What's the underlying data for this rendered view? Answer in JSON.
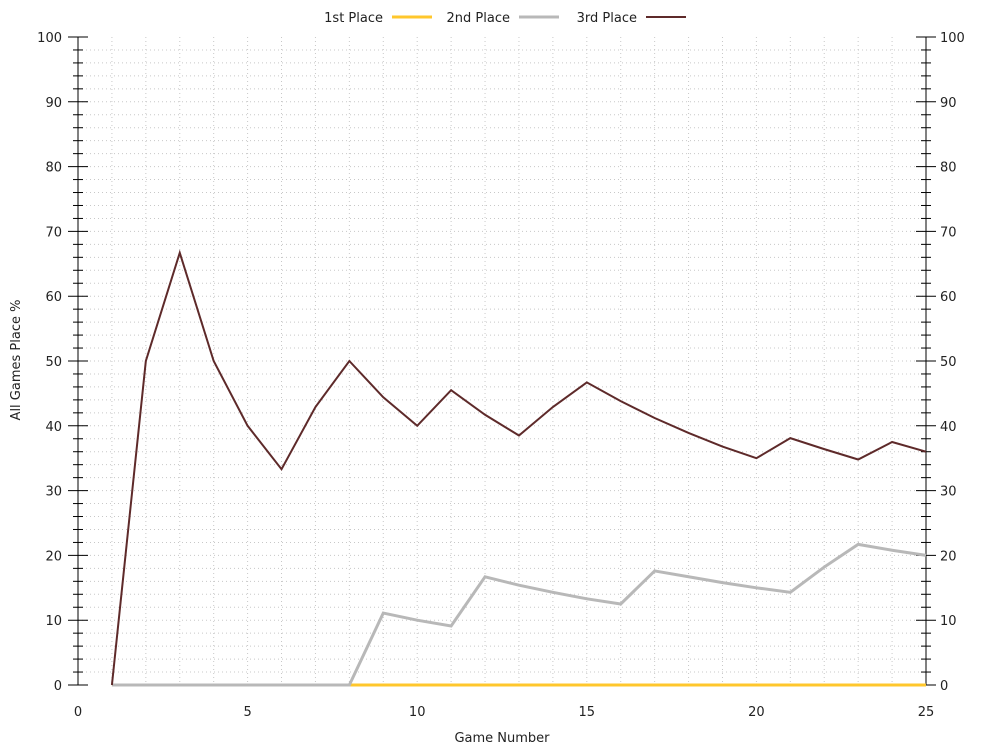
{
  "chart_data": {
    "type": "line",
    "xlabel": "Game Number",
    "ylabel": "All Games Place %",
    "xlim": [
      0,
      25
    ],
    "ylim": [
      0,
      100
    ],
    "x_ticks": [
      0,
      5,
      10,
      15,
      20,
      25
    ],
    "y_ticks": [
      0,
      10,
      20,
      30,
      40,
      50,
      60,
      70,
      80,
      90,
      100
    ],
    "x_tick_labels": [
      "0",
      "5",
      "10",
      "15",
      "20",
      "25"
    ],
    "y_tick_labels": [
      "0",
      "10",
      "20",
      "30",
      "40",
      "50",
      "60",
      "70",
      "80",
      "90",
      "100"
    ],
    "grid": true,
    "legend_position": "top-center",
    "x": [
      1,
      2,
      3,
      4,
      5,
      6,
      7,
      8,
      9,
      10,
      11,
      12,
      13,
      14,
      15,
      16,
      17,
      18,
      19,
      20,
      21,
      22,
      23,
      24,
      25
    ],
    "series": [
      {
        "name": "1st Place",
        "color": "#ffc72c",
        "values": [
          0,
          0,
          0,
          0,
          0,
          0,
          0,
          0,
          0,
          0,
          0,
          0,
          0,
          0,
          0,
          0,
          0,
          0,
          0,
          0,
          0,
          0,
          0,
          0,
          0
        ]
      },
      {
        "name": "2nd Place",
        "color": "#b8b8b8",
        "values": [
          0,
          0,
          0,
          0,
          0,
          0,
          0,
          0,
          11.1,
          10,
          9.1,
          16.7,
          15.4,
          14.3,
          13.3,
          12.5,
          17.6,
          16.7,
          15.8,
          15,
          14.3,
          18.2,
          21.7,
          20.8,
          20
        ]
      },
      {
        "name": "3rd Place",
        "color": "#5e2a2a",
        "values": [
          0,
          50,
          66.7,
          50,
          40,
          33.3,
          42.9,
          50,
          44.4,
          40,
          45.5,
          41.7,
          38.5,
          42.9,
          46.7,
          43.8,
          41.2,
          38.9,
          36.8,
          35,
          38.1,
          36.4,
          34.8,
          37.5,
          36
        ]
      }
    ]
  }
}
